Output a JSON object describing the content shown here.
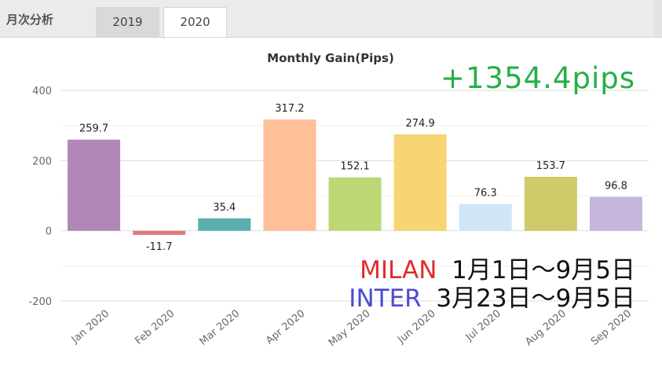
{
  "tabs": {
    "heading": "月次分析",
    "items": [
      {
        "label": "2019",
        "active": false
      },
      {
        "label": "2020",
        "active": true
      }
    ]
  },
  "annotations": {
    "total_gain": "+1354.4pips",
    "rows": [
      {
        "team": "MILAN",
        "period": "1月1日～9月5日",
        "color": "#e02b2b"
      },
      {
        "team": "INTER",
        "period": "3月23日～9月5日",
        "color": "#4c4cd1"
      }
    ],
    "gain_color": "#27ae46"
  },
  "chart_data": {
    "type": "bar",
    "title": "Monthly Gain(Pips)",
    "xlabel": "",
    "ylabel": "",
    "categories": [
      "Jan 2020",
      "Feb 2020",
      "Mar 2020",
      "Apr 2020",
      "May 2020",
      "Jun 2020",
      "Jul 2020",
      "Aug 2020",
      "Sep 2020"
    ],
    "values": [
      259.7,
      -11.7,
      35.4,
      317.2,
      152.1,
      274.9,
      76.3,
      153.7,
      96.8
    ],
    "data_labels": [
      "259.7",
      "-11.7",
      "35.4",
      "317.2",
      "152.1",
      "274.9",
      "76.3",
      "153.7",
      "96.8"
    ],
    "colors": [
      "#b087b7",
      "#e07b7b",
      "#5aaeae",
      "#ffbf99",
      "#bcd774",
      "#f7d474",
      "#cfe5f8",
      "#cfca6a",
      "#c6b6db"
    ],
    "ylim": [
      -200,
      400
    ],
    "yticks": [
      -200,
      0,
      200,
      400
    ],
    "ytick_labels": [
      "-200",
      "0",
      "200",
      "400"
    ],
    "grid": true,
    "legend": "none"
  }
}
